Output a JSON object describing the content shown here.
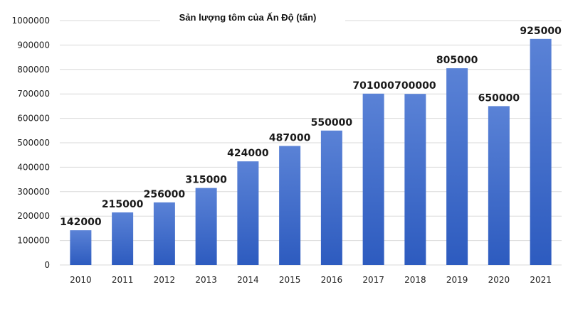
{
  "chart_data": {
    "type": "bar",
    "title": "Sản lượng tôm của Ấn Độ (tấn)",
    "xlabel": "",
    "ylabel": "",
    "categories": [
      "2010",
      "2011",
      "2012",
      "2013",
      "2014",
      "2015",
      "2016",
      "2017",
      "2018",
      "2019",
      "2020",
      "2021"
    ],
    "values": [
      142000,
      215000,
      256000,
      315000,
      424000,
      487000,
      550000,
      701000,
      700000,
      805000,
      650000,
      925000
    ],
    "data_labels": [
      "142000",
      "215000",
      "256000",
      "315000",
      "424000",
      "487000",
      "550000",
      "701000",
      "700000",
      "805000",
      "650000",
      "925000"
    ],
    "ylim": [
      0,
      1000000
    ],
    "yticks": [
      "0",
      "100000",
      "200000",
      "300000",
      "400000",
      "500000",
      "600000",
      "700000",
      "800000",
      "900000",
      "1000000"
    ],
    "ytick_values": [
      0,
      100000,
      200000,
      300000,
      400000,
      500000,
      600000,
      700000,
      800000,
      900000,
      1000000
    ],
    "grid": true,
    "legend": "none",
    "colors": {
      "bar_top": "#5a82d6",
      "bar_bottom": "#2d5bbf",
      "grid": "#d9d9d9"
    }
  }
}
